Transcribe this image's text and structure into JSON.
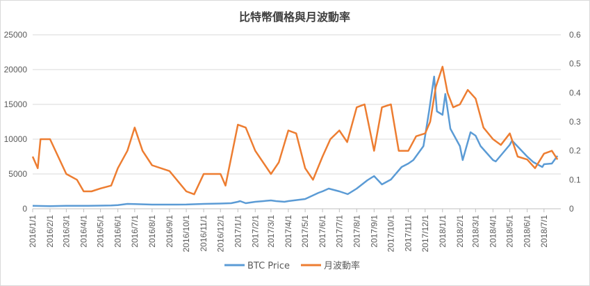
{
  "chart_data": {
    "type": "line",
    "title": "比特幣價格與月波動率",
    "x_tick_labels": [
      "2016/1/1",
      "2016/2/1",
      "2016/3/1",
      "2016/4/1",
      "2016/5/1",
      "2016/6/1",
      "2016/7/1",
      "2016/8/1",
      "2016/9/1",
      "2016/10/1",
      "2016/11/1",
      "2016/12/1",
      "2017/1/1",
      "2017/2/1",
      "2017/3/1",
      "2017/4/1",
      "2017/5/1",
      "2017/6/1",
      "2017/7/1",
      "2017/8/1",
      "2017/9/1",
      "2017/10/1",
      "2017/11/1",
      "2017/12/1",
      "2018/1/1",
      "2018/2/1",
      "2018/3/1",
      "2018/4/1",
      "2018/5/1",
      "2018/6/1",
      "2018/7/1"
    ],
    "y_left": {
      "min": 0,
      "max": 25000,
      "ticks": [
        "0",
        "5000",
        "10000",
        "15000",
        "20000",
        "25000"
      ]
    },
    "y_right": {
      "min": 0,
      "max": 0.6,
      "ticks": [
        "0",
        "0.1",
        "0.2",
        "0.3",
        "0.4",
        "0.5",
        "0.6"
      ]
    },
    "grid": true,
    "legend_position": "bottom",
    "series": [
      {
        "name": "BTC Price",
        "axis": "left",
        "color": "#5b9bd5",
        "x": [
          "2016/1/1",
          "2016/2/1",
          "2016/3/1",
          "2016/4/1",
          "2016/5/1",
          "2016/5/20",
          "2016/6/1",
          "2016/6/18",
          "2016/7/1",
          "2016/8/1",
          "2016/9/1",
          "2016/10/1",
          "2016/11/1",
          "2016/12/1",
          "2016/12/20",
          "2017/1/1",
          "2017/1/5",
          "2017/1/15",
          "2017/2/1",
          "2017/3/1",
          "2017/3/10",
          "2017/3/25",
          "2017/4/1",
          "2017/5/1",
          "2017/5/25",
          "2017/6/1",
          "2017/6/12",
          "2017/7/1",
          "2017/7/16",
          "2017/8/1",
          "2017/8/20",
          "2017/9/1",
          "2017/9/15",
          "2017/10/1",
          "2017/10/20",
          "2017/11/1",
          "2017/11/10",
          "2017/11/28",
          "2017/12/1",
          "2017/12/8",
          "2017/12/17",
          "2017/12/22",
          "2018/1/1",
          "2018/1/6",
          "2018/1/15",
          "2018/2/1",
          "2018/2/6",
          "2018/2/20",
          "2018/3/1",
          "2018/3/10",
          "2018/4/1",
          "2018/4/6",
          "2018/5/1",
          "2018/5/5",
          "2018/6/1",
          "2018/6/12",
          "2018/6/28",
          "2018/7/1",
          "2018/7/15",
          "2018/7/25"
        ],
        "values": [
          430,
          380,
          430,
          420,
          450,
          480,
          530,
          700,
          670,
          600,
          600,
          610,
          700,
          750,
          800,
          1000,
          1100,
          800,
          1000,
          1200,
          1100,
          1000,
          1100,
          1400,
          2300,
          2500,
          2900,
          2500,
          2100,
          2900,
          4100,
          4700,
          3500,
          4200,
          6000,
          6500,
          7000,
          9000,
          10500,
          14000,
          19000,
          14000,
          13500,
          16500,
          11500,
          9000,
          7000,
          11000,
          10500,
          9000,
          7000,
          6800,
          9200,
          9800,
          7500,
          6700,
          6000,
          6400,
          6500,
          7600
        ]
      },
      {
        "name": "月波動率",
        "axis": "right",
        "color": "#ed7d31",
        "x": [
          "2016/1/1",
          "2016/1/10",
          "2016/1/15",
          "2016/2/1",
          "2016/3/1",
          "2016/3/20",
          "2016/4/1",
          "2016/4/15",
          "2016/5/1",
          "2016/5/20",
          "2016/6/1",
          "2016/6/18",
          "2016/7/1",
          "2016/7/15",
          "2016/8/1",
          "2016/9/1",
          "2016/10/1",
          "2016/10/15",
          "2016/11/1",
          "2016/12/1",
          "2016/12/10",
          "2017/1/1",
          "2017/1/15",
          "2017/2/1",
          "2017/3/1",
          "2017/3/15",
          "2017/4/1",
          "2017/4/15",
          "2017/5/1",
          "2017/5/15",
          "2017/6/1",
          "2017/6/15",
          "2017/7/1",
          "2017/7/15",
          "2017/8/1",
          "2017/8/15",
          "2017/9/1",
          "2017/9/15",
          "2017/10/1",
          "2017/10/15",
          "2017/11/1",
          "2017/11/15",
          "2017/12/1",
          "2017/12/10",
          "2017/12/20",
          "2018/1/1",
          "2018/1/10",
          "2018/1/20",
          "2018/2/1",
          "2018/2/15",
          "2018/3/1",
          "2018/3/15",
          "2018/4/1",
          "2018/4/15",
          "2018/5/1",
          "2018/5/15",
          "2018/6/1",
          "2018/6/15",
          "2018/7/1",
          "2018/7/15",
          "2018/7/25"
        ],
        "values": [
          0.18,
          0.14,
          0.24,
          0.24,
          0.12,
          0.1,
          0.06,
          0.06,
          0.07,
          0.08,
          0.14,
          0.2,
          0.28,
          0.2,
          0.15,
          0.13,
          0.06,
          0.05,
          0.12,
          0.12,
          0.08,
          0.29,
          0.28,
          0.2,
          0.12,
          0.16,
          0.27,
          0.26,
          0.14,
          0.1,
          0.18,
          0.24,
          0.27,
          0.23,
          0.35,
          0.36,
          0.2,
          0.35,
          0.36,
          0.2,
          0.2,
          0.25,
          0.26,
          0.3,
          0.42,
          0.49,
          0.4,
          0.35,
          0.36,
          0.41,
          0.38,
          0.28,
          0.24,
          0.22,
          0.26,
          0.18,
          0.17,
          0.14,
          0.19,
          0.2,
          0.17
        ]
      }
    ]
  }
}
